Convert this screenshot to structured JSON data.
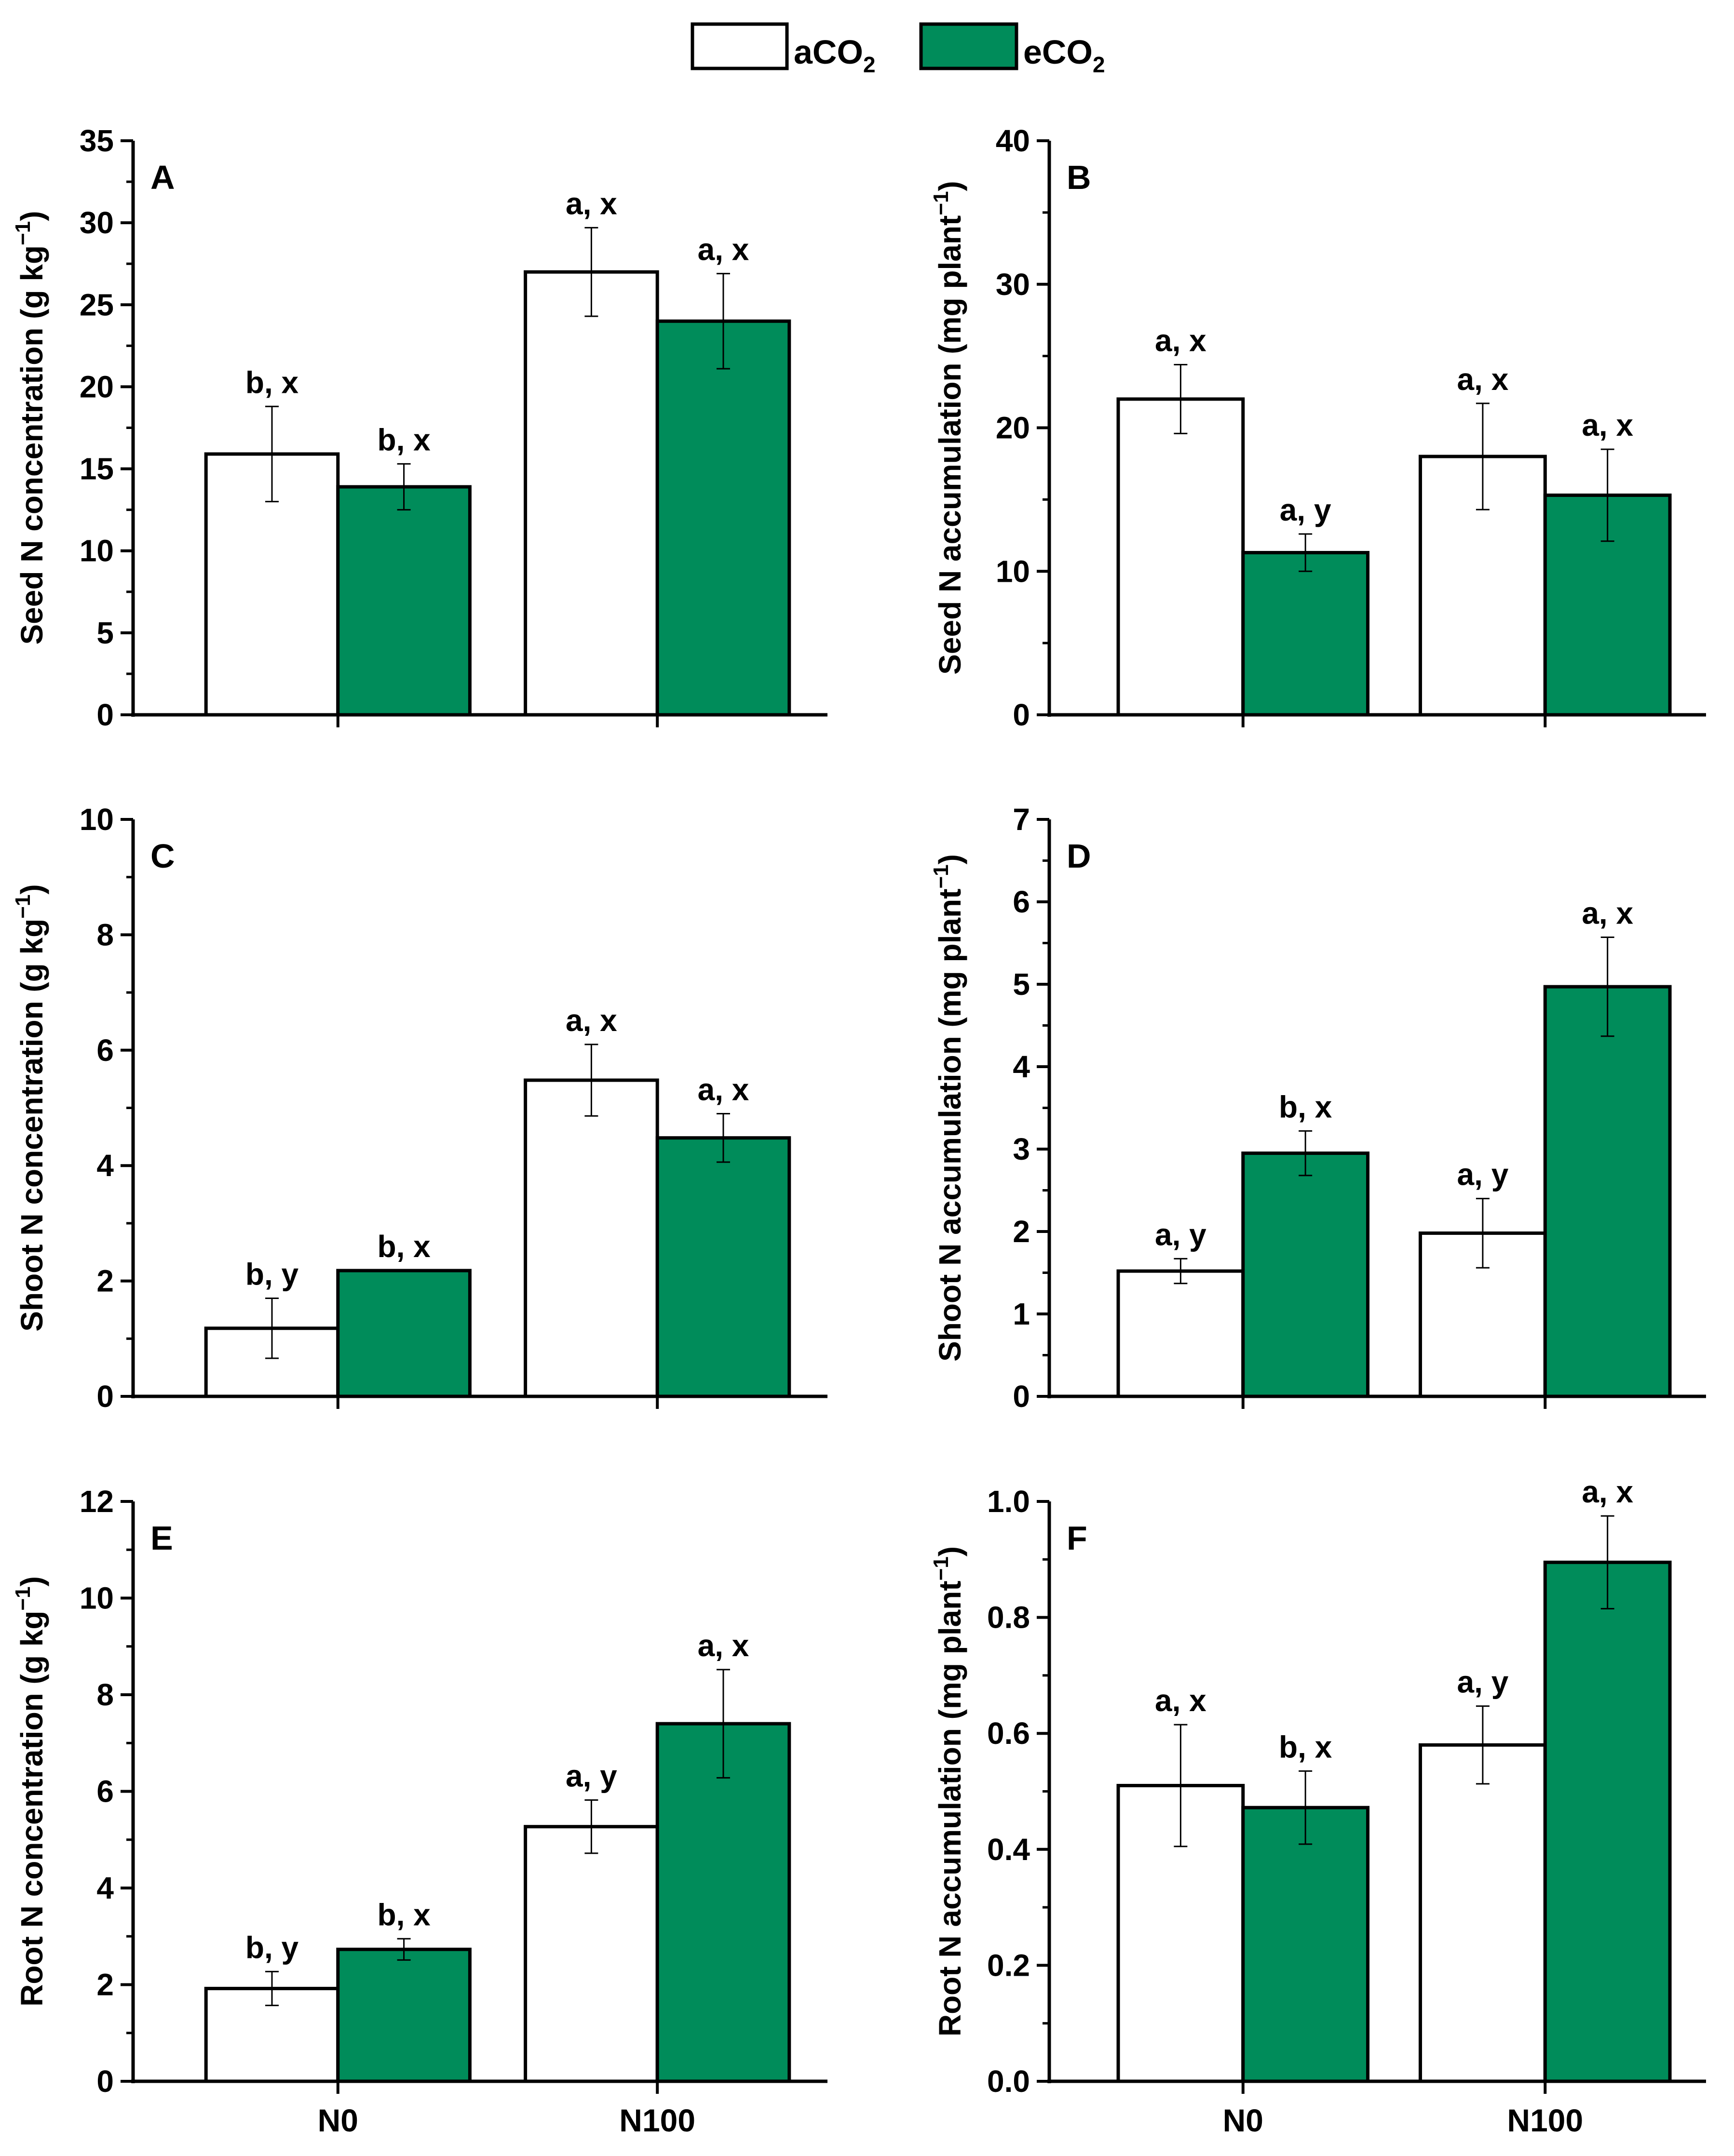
{
  "legend": {
    "items": [
      {
        "label_main": "aCO",
        "label_sub": "2",
        "fill": "#ffffff"
      },
      {
        "label_main": "eCO",
        "label_sub": "2",
        "fill": "#008c5a"
      }
    ]
  },
  "colors": {
    "aCO2": "#ffffff",
    "eCO2": "#008c5a",
    "stroke": "#000000"
  },
  "chart_data": [
    {
      "panel": "A",
      "type": "bar",
      "ylabel_main": "Seed N concentration (g kg",
      "ylabel_sup": "−1",
      "ylabel_close": ")",
      "ylim": [
        0,
        35
      ],
      "yticks": [
        0,
        5,
        10,
        15,
        20,
        25,
        30,
        35
      ],
      "categories": [
        "N0",
        "N100"
      ],
      "show_xlabels": false,
      "series": [
        {
          "name": "aCO2",
          "values": [
            15.9,
            27.0
          ],
          "errors": [
            2.9,
            2.7
          ],
          "letters": [
            "b, x",
            "a, x"
          ]
        },
        {
          "name": "eCO2",
          "values": [
            13.9,
            24.0
          ],
          "errors": [
            1.4,
            2.9
          ],
          "letters": [
            "b, x",
            "a, x"
          ]
        }
      ]
    },
    {
      "panel": "B",
      "type": "bar",
      "ylabel_main": "Seed N accumulation (mg plant",
      "ylabel_sup": "−1",
      "ylabel_close": ")",
      "ylim": [
        0,
        40
      ],
      "yticks": [
        0,
        10,
        20,
        30,
        40
      ],
      "categories": [
        "N0",
        "N100"
      ],
      "show_xlabels": false,
      "series": [
        {
          "name": "aCO2",
          "values": [
            22.0,
            18.0
          ],
          "errors": [
            2.4,
            3.7
          ],
          "letters": [
            "a, x",
            "a, x"
          ]
        },
        {
          "name": "eCO2",
          "values": [
            11.3,
            15.3
          ],
          "errors": [
            1.3,
            3.2
          ],
          "letters": [
            "a, y",
            "a, x"
          ]
        }
      ]
    },
    {
      "panel": "C",
      "type": "bar",
      "ylabel_main": "Shoot N concentration (g kg",
      "ylabel_sup": "−1",
      "ylabel_close": ")",
      "ylim": [
        0,
        10
      ],
      "yticks": [
        0,
        2,
        4,
        6,
        8,
        10
      ],
      "categories": [
        "N0",
        "N100"
      ],
      "show_xlabels": false,
      "series": [
        {
          "name": "aCO2",
          "values": [
            1.18,
            5.48
          ],
          "errors": [
            0.52,
            0.62
          ],
          "letters": [
            "b, y",
            "a, x"
          ]
        },
        {
          "name": "eCO2",
          "values": [
            2.18,
            4.48
          ],
          "errors": [
            0.0,
            0.42
          ],
          "letters": [
            "b, x",
            "a, x"
          ]
        }
      ]
    },
    {
      "panel": "D",
      "type": "bar",
      "ylabel_main": "Shoot N accumulation (mg plant",
      "ylabel_sup": "−1",
      "ylabel_close": ")",
      "ylim": [
        0,
        7
      ],
      "yticks": [
        0,
        1,
        2,
        3,
        4,
        5,
        6,
        7
      ],
      "categories": [
        "N0",
        "N100"
      ],
      "show_xlabels": false,
      "series": [
        {
          "name": "aCO2",
          "values": [
            1.52,
            1.98
          ],
          "errors": [
            0.15,
            0.42
          ],
          "letters": [
            "a, y",
            "a, y"
          ]
        },
        {
          "name": "eCO2",
          "values": [
            2.95,
            4.97
          ],
          "errors": [
            0.27,
            0.6
          ],
          "letters": [
            "b, x",
            "a, x"
          ]
        }
      ]
    },
    {
      "panel": "E",
      "type": "bar",
      "ylabel_main": "Root N concentration (g kg",
      "ylabel_sup": "−1",
      "ylabel_close": ")",
      "ylim": [
        0,
        12
      ],
      "yticks": [
        0,
        2,
        4,
        6,
        8,
        10,
        12
      ],
      "categories": [
        "N0",
        "N100"
      ],
      "show_xlabels": true,
      "series": [
        {
          "name": "aCO2",
          "values": [
            1.92,
            5.27
          ],
          "errors": [
            0.35,
            0.55
          ],
          "letters": [
            "b, y",
            "a, y"
          ]
        },
        {
          "name": "eCO2",
          "values": [
            2.73,
            7.4
          ],
          "errors": [
            0.22,
            1.12
          ],
          "letters": [
            "b, x",
            "a, x"
          ]
        }
      ]
    },
    {
      "panel": "F",
      "type": "bar",
      "ylabel_main": "Root N accumulation (mg plant",
      "ylabel_sup": "−1",
      "ylabel_close": ")",
      "ylim": [
        0,
        1.0
      ],
      "yticks": [
        0.0,
        0.2,
        0.4,
        0.6,
        0.8,
        1.0
      ],
      "ytick_decimals": 1,
      "categories": [
        "N0",
        "N100"
      ],
      "show_xlabels": true,
      "series": [
        {
          "name": "aCO2",
          "values": [
            0.51,
            0.58
          ],
          "errors": [
            0.105,
            0.067
          ],
          "letters": [
            "a, x",
            "a, y"
          ]
        },
        {
          "name": "eCO2",
          "values": [
            0.472,
            0.895
          ],
          "errors": [
            0.063,
            0.08
          ],
          "letters": [
            "b, x",
            "a, x"
          ]
        }
      ]
    }
  ]
}
